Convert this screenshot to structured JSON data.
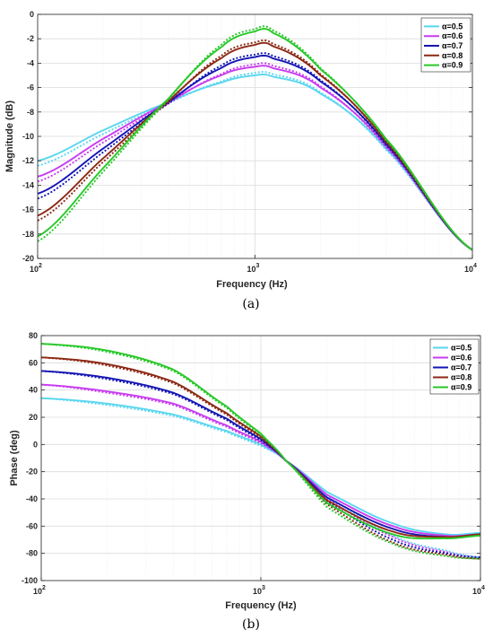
{
  "chart_data": [
    {
      "type": "line",
      "caption": "(a)",
      "xlabel": "Frequency (Hz)",
      "ylabel": "Magnitude (dB)",
      "xscale": "log",
      "xlim": [
        100,
        10000
      ],
      "ylim": [
        -20,
        0
      ],
      "xticks": [
        100,
        1000,
        10000
      ],
      "xtick_labels": [
        {
          "base": "10",
          "exp": "2"
        },
        {
          "base": "10",
          "exp": "3"
        },
        {
          "base": "10",
          "exp": "4"
        }
      ],
      "yticks": [
        0,
        -2,
        -4,
        -6,
        -8,
        -10,
        -12,
        -14,
        -16,
        -18,
        -20
      ],
      "ytick_labels": [
        "0",
        "-2",
        "-4",
        "-6",
        "-8",
        "-10",
        "-12",
        "-14",
        "-16",
        "-18",
        "-20"
      ],
      "grid": true,
      "legend_position": "top-right",
      "line_styles": [
        "solid",
        "dotted"
      ],
      "x": [
        100,
        200,
        400,
        700,
        1000,
        1200,
        2000,
        4000,
        10000
      ],
      "series": [
        {
          "name": "α=0.5",
          "color": "#5ad6f0",
          "values": [
            -12.0,
            -9.5,
            -7.2,
            -5.6,
            -5.0,
            -5.1,
            -6.5,
            -11.0,
            -19.3
          ],
          "values_dotted": [
            -12.4,
            -9.8,
            -7.3,
            -5.5,
            -4.8,
            -4.9,
            -6.4,
            -11.1,
            -19.3
          ]
        },
        {
          "name": "α=0.6",
          "color": "#c83cf0",
          "values": [
            -13.3,
            -10.2,
            -7.2,
            -5.0,
            -4.3,
            -4.4,
            -6.0,
            -10.8,
            -19.3
          ],
          "values_dotted": [
            -13.7,
            -10.5,
            -7.3,
            -4.9,
            -4.1,
            -4.2,
            -5.9,
            -10.9,
            -19.3
          ]
        },
        {
          "name": "α=0.7",
          "color": "#1414b4",
          "values": [
            -14.7,
            -11.0,
            -7.2,
            -4.4,
            -3.5,
            -3.6,
            -5.5,
            -10.6,
            -19.3
          ],
          "values_dotted": [
            -15.1,
            -11.3,
            -7.3,
            -4.2,
            -3.3,
            -3.4,
            -5.4,
            -10.7,
            -19.3
          ]
        },
        {
          "name": "α=0.8",
          "color": "#8c2814",
          "values": [
            -16.5,
            -11.8,
            -7.1,
            -3.6,
            -2.5,
            -2.6,
            -5.0,
            -10.4,
            -19.3
          ],
          "values_dotted": [
            -16.9,
            -12.1,
            -7.2,
            -3.4,
            -2.3,
            -2.4,
            -4.9,
            -10.5,
            -19.3
          ]
        },
        {
          "name": "α=0.9",
          "color": "#28c828",
          "values": [
            -18.2,
            -12.6,
            -6.9,
            -2.7,
            -1.4,
            -1.5,
            -4.5,
            -10.2,
            -19.3
          ],
          "values_dotted": [
            -18.6,
            -12.9,
            -7.0,
            -2.5,
            -1.2,
            -1.3,
            -4.4,
            -10.3,
            -19.3
          ]
        }
      ]
    },
    {
      "type": "line",
      "caption": "(b)",
      "xlabel": "Frequency (Hz)",
      "ylabel": "Phase (deg)",
      "xscale": "log",
      "xlim": [
        100,
        10000
      ],
      "ylim": [
        -100,
        80
      ],
      "xticks": [
        100,
        1000,
        10000
      ],
      "xtick_labels": [
        {
          "base": "10",
          "exp": "2"
        },
        {
          "base": "10",
          "exp": "3"
        },
        {
          "base": "10",
          "exp": "4"
        }
      ],
      "yticks": [
        80,
        60,
        40,
        20,
        0,
        -20,
        -40,
        -60,
        -80,
        -100
      ],
      "ytick_labels": [
        "80",
        "60",
        "40",
        "20",
        "0",
        "-20",
        "-40",
        "-60",
        "-80",
        "-100"
      ],
      "grid": true,
      "legend_position": "top-right",
      "line_styles": [
        "solid",
        "dotted"
      ],
      "x": [
        100,
        200,
        400,
        700,
        1000,
        1300,
        2000,
        4000,
        7000,
        10000
      ],
      "series": [
        {
          "name": "α=0.5",
          "color": "#5ad6f0",
          "values": [
            34,
            30,
            22,
            10,
            0,
            -12,
            -35,
            -58,
            -66,
            -65
          ],
          "values_dotted": [
            34,
            29,
            21,
            9,
            -1,
            -12,
            -38,
            -67,
            -78,
            -83
          ]
        },
        {
          "name": "α=0.6",
          "color": "#c83cf0",
          "values": [
            44,
            39,
            30,
            14,
            2,
            -12,
            -37,
            -60,
            -67,
            -66
          ],
          "values_dotted": [
            44,
            38,
            29,
            13,
            1,
            -12,
            -40,
            -68,
            -79,
            -83
          ]
        },
        {
          "name": "α=0.7",
          "color": "#1414b4",
          "values": [
            54,
            49,
            38,
            19,
            4,
            -12,
            -39,
            -62,
            -68,
            -66
          ],
          "values_dotted": [
            54,
            48,
            37,
            18,
            3,
            -12,
            -42,
            -70,
            -80,
            -83
          ]
        },
        {
          "name": "α=0.8",
          "color": "#8c2814",
          "values": [
            64,
            59,
            46,
            23,
            6,
            -12,
            -41,
            -64,
            -68,
            -66
          ],
          "values_dotted": [
            64,
            58,
            45,
            22,
            5,
            -12,
            -44,
            -72,
            -81,
            -84
          ]
        },
        {
          "name": "α=0.9",
          "color": "#28c828",
          "values": [
            74,
            69,
            55,
            28,
            8,
            -12,
            -43,
            -66,
            -69,
            -67
          ],
          "values_dotted": [
            74,
            68,
            54,
            27,
            7,
            -12,
            -46,
            -73,
            -82,
            -84
          ]
        }
      ]
    }
  ]
}
